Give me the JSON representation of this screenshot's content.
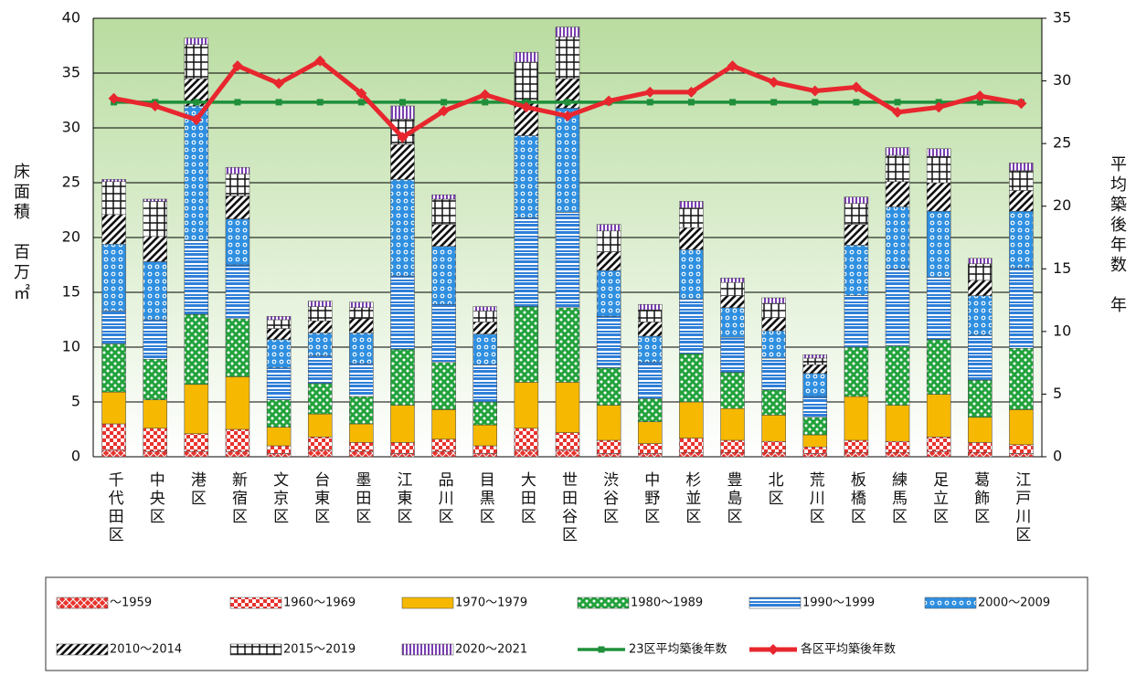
{
  "chart_data": {
    "type": "bar",
    "stacked": true,
    "y_label": "床面積　百万㎡",
    "y2_label": "平均築後年数　年",
    "categories": [
      "千代田区",
      "中央区",
      "港区",
      "新宿区",
      "文京区",
      "台東区",
      "墨田区",
      "江東区",
      "品川区",
      "目黒区",
      "大田区",
      "世田谷区",
      "渋谷区",
      "中野区",
      "杉並区",
      "豊島区",
      "北区",
      "荒川区",
      "板橋区",
      "練馬区",
      "足立区",
      "葛飾区",
      "江戸川区"
    ],
    "ylim": [
      0,
      40
    ],
    "yticks": [
      0,
      5,
      10,
      15,
      20,
      25,
      30,
      35,
      40
    ],
    "y2lim": [
      0,
      35
    ],
    "y2ticks": [
      0,
      5,
      10,
      15,
      20,
      25,
      30,
      35
    ],
    "grid": true,
    "series": [
      {
        "name": "～1959",
        "color": "#e8332e",
        "values": [
          0.6,
          0.5,
          0.5,
          0.5,
          0.3,
          0.6,
          0.5,
          0.3,
          0.5,
          0.3,
          0.6,
          0.6,
          0.3,
          0.3,
          0.4,
          0.4,
          0.4,
          0.3,
          0.4,
          0.4,
          0.5,
          0.4,
          0.3
        ]
      },
      {
        "name": "1960～1969",
        "color": "#e8332e",
        "values": [
          2.4,
          2.1,
          1.6,
          2.0,
          0.7,
          1.2,
          0.8,
          1.0,
          1.1,
          0.7,
          2.0,
          1.6,
          1.2,
          0.9,
          1.3,
          1.1,
          1.0,
          0.6,
          1.1,
          1.0,
          1.3,
          0.9,
          0.8
        ]
      },
      {
        "name": "1970～1979",
        "color": "#f6b800",
        "values": [
          2.9,
          2.6,
          4.5,
          4.8,
          1.7,
          2.1,
          1.7,
          3.4,
          2.7,
          1.9,
          4.2,
          4.6,
          3.2,
          2.0,
          3.3,
          2.9,
          2.4,
          1.1,
          4.0,
          3.3,
          3.9,
          2.3,
          3.2
        ]
      },
      {
        "name": "1980～1989",
        "color": "#22a23c",
        "values": [
          4.4,
          3.7,
          6.4,
          5.3,
          2.5,
          2.8,
          2.5,
          5.1,
          4.3,
          2.1,
          6.9,
          6.8,
          3.4,
          2.1,
          4.4,
          3.3,
          2.3,
          1.6,
          4.5,
          5.4,
          5.0,
          3.4,
          5.6
        ]
      },
      {
        "name": "1990～1999",
        "color": "#2f7fd8",
        "values": [
          3.0,
          3.6,
          6.7,
          4.9,
          2.9,
          2.5,
          3.0,
          6.7,
          5.3,
          3.4,
          8.1,
          8.7,
          4.7,
          3.3,
          5.0,
          3.2,
          2.9,
          1.9,
          4.7,
          7.0,
          5.7,
          4.1,
          7.3
        ]
      },
      {
        "name": "2000～2009",
        "color": "#2f8fe0",
        "values": [
          6.1,
          5.3,
          12.3,
          4.2,
          2.6,
          2.1,
          2.8,
          8.8,
          5.3,
          2.8,
          7.5,
          9.5,
          4.2,
          2.4,
          4.5,
          2.7,
          2.5,
          2.1,
          4.6,
          5.7,
          6.0,
          3.6,
          5.2
        ]
      },
      {
        "name": "2010～2014",
        "color": "#111111",
        "values": [
          2.7,
          2.3,
          2.5,
          2.1,
          1.0,
          1.1,
          1.3,
          3.2,
          2.0,
          1.1,
          3.0,
          2.7,
          1.7,
          1.3,
          2.0,
          1.1,
          1.2,
          0.8,
          1.9,
          2.3,
          2.6,
          1.4,
          1.9
        ]
      },
      {
        "name": "2015～2019",
        "color": "#111111",
        "values": [
          3.0,
          3.2,
          3.1,
          2.0,
          0.8,
          1.3,
          1.0,
          2.3,
          2.3,
          1.0,
          3.7,
          3.8,
          1.9,
          1.1,
          1.8,
          1.2,
          1.3,
          0.6,
          1.9,
          2.4,
          2.4,
          1.5,
          1.8
        ]
      },
      {
        "name": "2020～2021",
        "color": "#7a3fb0",
        "values": [
          0.2,
          0.2,
          0.6,
          0.6,
          0.3,
          0.5,
          0.5,
          1.2,
          0.4,
          0.4,
          0.9,
          0.9,
          0.6,
          0.5,
          0.6,
          0.4,
          0.5,
          0.3,
          0.6,
          0.7,
          0.7,
          0.5,
          0.7
        ]
      },
      {
        "name": "23区平均築後年数",
        "type": "line",
        "axis": "y2",
        "color": "#1f8f3a",
        "values": [
          28.3,
          28.3,
          28.3,
          28.3,
          28.3,
          28.3,
          28.3,
          28.3,
          28.3,
          28.3,
          28.3,
          28.3,
          28.3,
          28.3,
          28.3,
          28.3,
          28.3,
          28.3,
          28.3,
          28.3,
          28.3,
          28.3,
          28.3
        ]
      },
      {
        "name": "各区平均築後年数",
        "type": "line",
        "axis": "y2",
        "color": "#e8262e",
        "values": [
          28.6,
          28.0,
          26.9,
          31.2,
          29.8,
          31.6,
          29.0,
          25.5,
          27.6,
          28.9,
          27.9,
          27.2,
          28.4,
          29.1,
          29.1,
          31.2,
          29.9,
          29.2,
          29.5,
          27.5,
          27.9,
          28.8,
          28.2
        ]
      }
    ]
  }
}
